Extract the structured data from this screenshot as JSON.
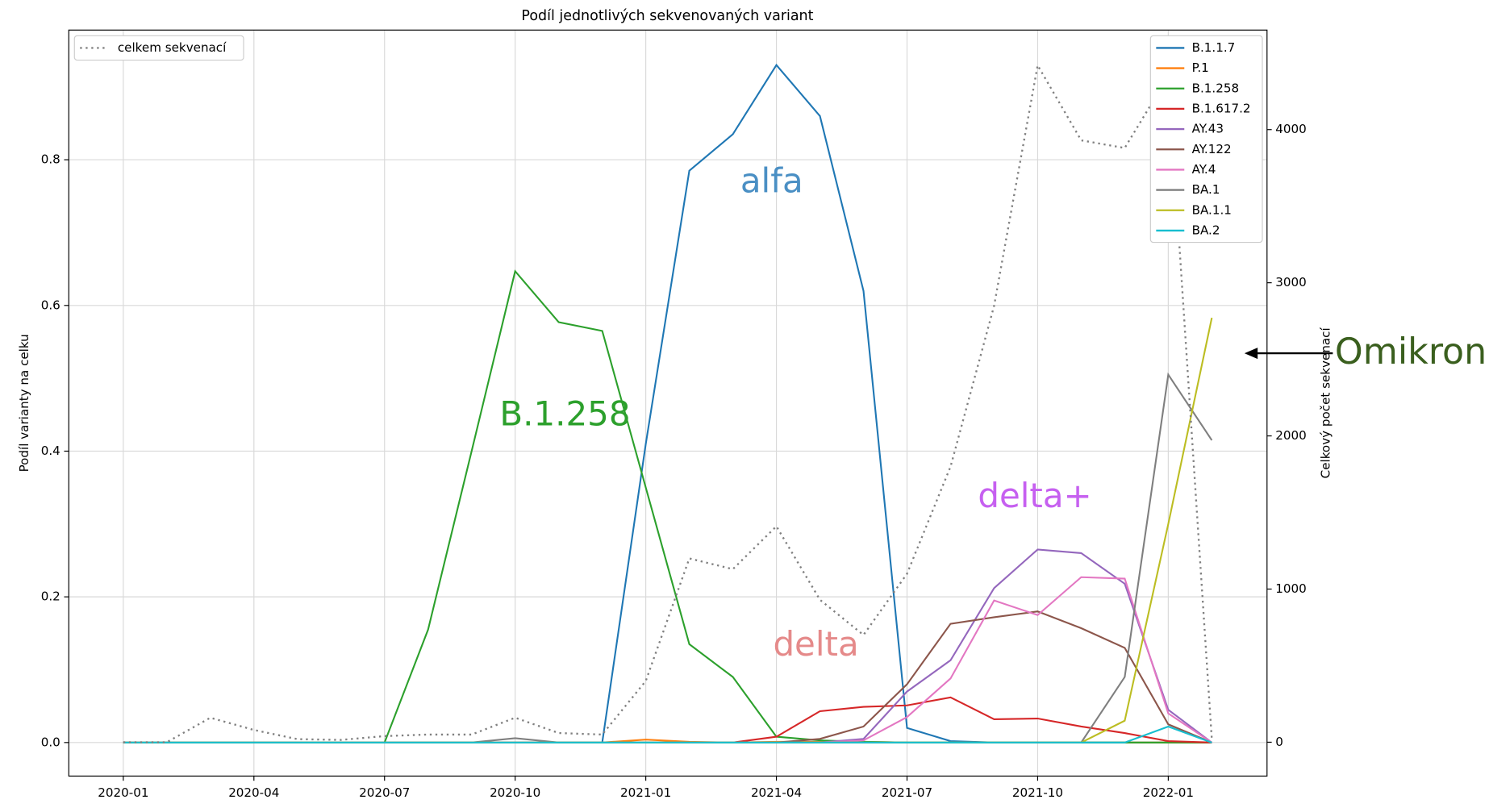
{
  "chart_data": {
    "type": "line",
    "title": "Podíl jednotlivých sekvenovaných variant",
    "ylabel": "Podíl varianty na celku",
    "y2label": "Celkový počet sekvenací",
    "x": [
      "2020-01",
      "2020-02",
      "2020-03",
      "2020-04",
      "2020-05",
      "2020-06",
      "2020-07",
      "2020-08",
      "2020-09",
      "2020-10",
      "2020-11",
      "2020-12",
      "2021-01",
      "2021-02",
      "2021-03",
      "2021-04",
      "2021-05",
      "2021-06",
      "2021-07",
      "2021-08",
      "2021-09",
      "2021-10",
      "2021-11",
      "2021-12",
      "2022-01",
      "2022-02"
    ],
    "xticks": [
      "2020-01",
      "2020-04",
      "2020-07",
      "2020-10",
      "2021-01",
      "2021-04",
      "2021-07",
      "2021-10",
      "2022-01"
    ],
    "ylim": [
      -0.046,
      0.978
    ],
    "yticks": [
      {
        "value": 0,
        "label": "0.0"
      },
      0.2,
      0.4,
      0.6,
      0.8
    ],
    "y2lim": [
      -221,
      4650
    ],
    "y2ticks": [
      0,
      1000,
      2000,
      3000,
      4000
    ],
    "grid": true,
    "legend": "upper right",
    "series": [
      {
        "name": "B.1.1.7",
        "color": "#1f77b4",
        "values": [
          0,
          0,
          0,
          0,
          0,
          0,
          0,
          0,
          0,
          0,
          0,
          0,
          0.41,
          0.785,
          0.835,
          0.93,
          0.86,
          0.62,
          0.02,
          0.002,
          0,
          0,
          0,
          0,
          0,
          0
        ]
      },
      {
        "name": "P.1",
        "color": "#ff7f0e",
        "values": [
          0,
          0,
          0,
          0,
          0,
          0,
          0,
          0,
          0,
          0,
          0,
          0,
          0.004,
          0.001,
          0,
          0.001,
          0.001,
          0.001,
          0,
          0,
          0,
          0,
          0,
          0,
          0,
          0
        ]
      },
      {
        "name": "B.1.258",
        "color": "#2ca02c",
        "values": [
          0,
          0,
          0,
          0,
          0,
          0,
          0,
          0.155,
          0.4,
          0.647,
          0.577,
          0.565,
          0.35,
          0.135,
          0.09,
          0.008,
          0.003,
          0.001,
          0,
          0,
          0,
          0,
          0,
          0,
          0,
          0
        ]
      },
      {
        "name": "B.1.617.2",
        "color": "#d62728",
        "values": [
          0,
          0,
          0,
          0,
          0,
          0,
          0,
          0,
          0,
          0,
          0,
          0,
          0,
          0,
          0,
          0.008,
          0.043,
          0.049,
          0.051,
          0.062,
          0.032,
          0.033,
          0.022,
          0.013,
          0.002,
          0
        ]
      },
      {
        "name": "AY.43",
        "color": "#9467bd",
        "values": [
          0,
          0,
          0,
          0,
          0,
          0,
          0,
          0,
          0,
          0,
          0,
          0,
          0,
          0,
          0,
          0,
          0,
          0.005,
          0.07,
          0.113,
          0.212,
          0.265,
          0.26,
          0.218,
          0.045,
          0
        ]
      },
      {
        "name": "AY.122",
        "color": "#8c564b",
        "values": [
          0,
          0,
          0,
          0,
          0,
          0,
          0,
          0,
          0,
          0,
          0,
          0,
          0,
          0,
          0,
          0,
          0.005,
          0.022,
          0.08,
          0.163,
          0.172,
          0.18,
          0.157,
          0.13,
          0.025,
          0
        ]
      },
      {
        "name": "AY.4",
        "color": "#e377c2",
        "values": [
          0,
          0,
          0,
          0,
          0,
          0,
          0,
          0,
          0,
          0,
          0,
          0,
          0,
          0,
          0,
          0,
          0,
          0.003,
          0.035,
          0.088,
          0.195,
          0.175,
          0.227,
          0.225,
          0.04,
          0
        ]
      },
      {
        "name": "BA.1",
        "color": "#7f7f7f",
        "values": [
          0,
          0,
          0,
          0,
          0,
          0,
          0,
          0,
          0,
          0.006,
          0,
          0,
          0,
          0,
          0,
          0,
          0,
          0,
          0,
          0,
          0,
          0,
          0,
          0.09,
          0.505,
          0.415
        ]
      },
      {
        "name": "BA.1.1",
        "color": "#bcbd22",
        "values": [
          0,
          0,
          0,
          0,
          0,
          0,
          0,
          0,
          0,
          0,
          0,
          0,
          0,
          0,
          0,
          0,
          0,
          0,
          0,
          0,
          0,
          0,
          0,
          0.03,
          0.3,
          0.583
        ]
      },
      {
        "name": "BA.2",
        "color": "#17becf",
        "values": [
          0,
          0,
          0,
          0,
          0,
          0,
          0,
          0,
          0,
          0,
          0,
          0,
          0,
          0,
          0,
          0,
          0,
          0,
          0,
          0,
          0,
          0,
          0,
          0,
          0.022,
          0
        ]
      },
      {
        "name": "celkem sekvenací",
        "color": "#808080",
        "axis": "y2",
        "linestyle": "dotted",
        "legend": "upper left",
        "values": [
          0,
          0,
          160,
          80,
          20,
          15,
          40,
          50,
          50,
          160,
          60,
          50,
          400,
          1200,
          1130,
          1410,
          930,
          700,
          1100,
          1800,
          2850,
          4420,
          3930,
          3880,
          4350,
          20
        ]
      }
    ],
    "annotations": [
      {
        "text": "alfa",
        "color": "#4a8fc4"
      },
      {
        "text": "B.1.258",
        "color": "#2ca02c"
      },
      {
        "text": "delta",
        "color": "#e58a8a"
      },
      {
        "text": "delta+",
        "color": "#c660f0"
      },
      {
        "text": "Omikron",
        "color": "#3a5f1e"
      }
    ]
  }
}
